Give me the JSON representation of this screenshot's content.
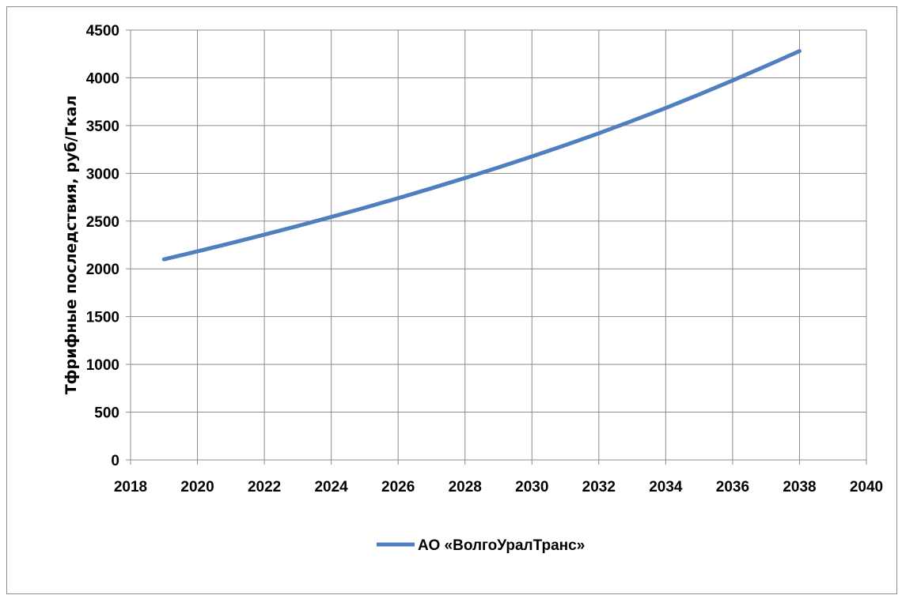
{
  "chart_data": {
    "type": "line",
    "ylabel": "Тфрифные последствия, руб/Гкал",
    "xlabel": "",
    "xlim": [
      2018,
      2040
    ],
    "ylim": [
      0,
      4500
    ],
    "x_ticks": [
      "2018",
      "2020",
      "2022",
      "2024",
      "2026",
      "2028",
      "2030",
      "2032",
      "2034",
      "2036",
      "2038",
      "2040"
    ],
    "y_ticks": [
      "0",
      "500",
      "1000",
      "1500",
      "2000",
      "2500",
      "3000",
      "3500",
      "4000",
      "4500"
    ],
    "grid": true,
    "legend_position": "bottom",
    "series": [
      {
        "name": "АО «ВолгоУралТранс»",
        "color": "#4f7fbf",
        "x": [
          2019,
          2020,
          2021,
          2022,
          2023,
          2024,
          2025,
          2026,
          2027,
          2028,
          2029,
          2030,
          2031,
          2032,
          2033,
          2034,
          2035,
          2036,
          2037,
          2038
        ],
        "y": [
          2100,
          2183,
          2269,
          2358,
          2449,
          2543,
          2640,
          2740,
          2844,
          2951,
          3062,
          3176,
          3295,
          3419,
          3549,
          3684,
          3825,
          3972,
          4124,
          4280
        ]
      }
    ]
  }
}
